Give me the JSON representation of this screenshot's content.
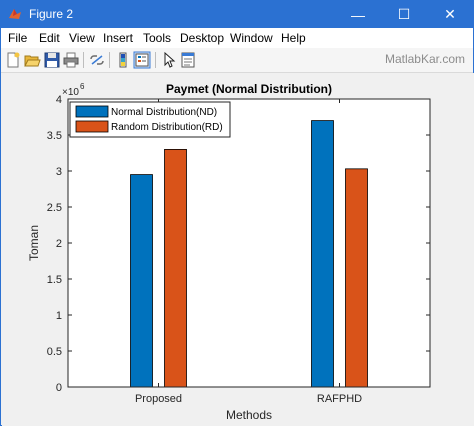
{
  "window": {
    "title": "Figure 2",
    "minimize_glyph": "—",
    "maximize_glyph": "☐",
    "close_glyph": "✕"
  },
  "menu": {
    "items": [
      "File",
      "Edit",
      "View",
      "Insert",
      "Tools",
      "Desktop",
      "Window",
      "Help"
    ]
  },
  "toolbar": {
    "icons": [
      "new-figure-icon",
      "open-file-icon",
      "save-icon",
      "print-icon",
      "link-plot-icon",
      "insert-colorbar-icon",
      "insert-legend-icon",
      "edit-plot-arrow-icon",
      "property-editor-icon"
    ],
    "watermark": "MatlabKar.com"
  },
  "colors": {
    "titlebar": "#2b71d2",
    "series_nd": "#0072bd",
    "series_rd": "#d95319"
  },
  "chart_data": {
    "type": "bar",
    "title": "Paymet (Normal Distribution)",
    "xlabel": "Methods",
    "ylabel": "Toman",
    "exponent_label": "×10",
    "exponent_power": "6",
    "categories": [
      "Proposed",
      "RAFPHD"
    ],
    "series": [
      {
        "name": "Normal Distribution(ND)",
        "values": [
          2950000,
          3700000
        ]
      },
      {
        "name": "Random Distribution(RD)",
        "values": [
          3300000,
          3030000
        ]
      }
    ],
    "ylim": [
      0,
      4000000
    ],
    "yticks": [
      "0",
      "0.5",
      "1",
      "1.5",
      "2",
      "2.5",
      "3",
      "3.5",
      "4"
    ],
    "grid": false,
    "legend_position": "top-left"
  }
}
